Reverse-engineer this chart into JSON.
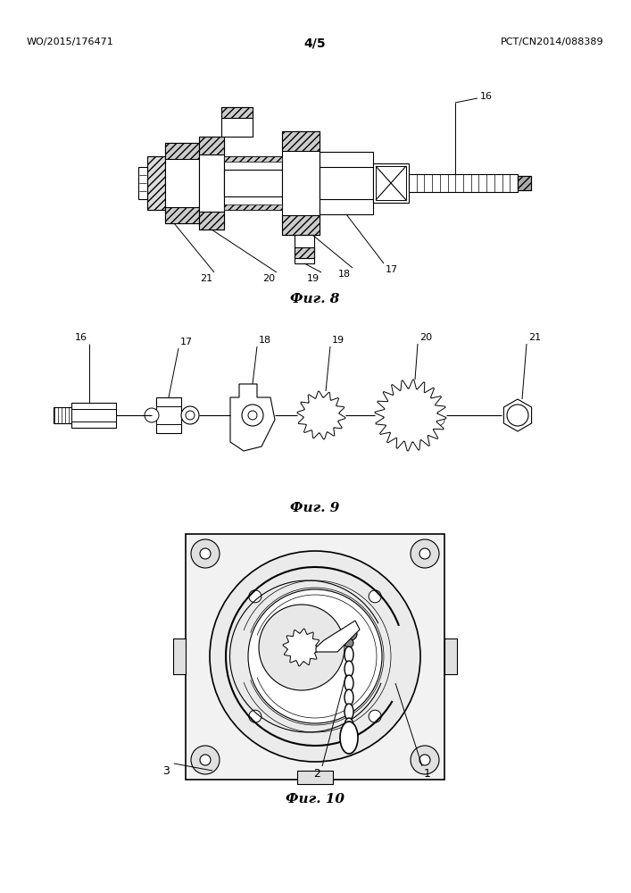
{
  "header_left": "WO/2015/176471",
  "header_right": "PCT/CN2014/088389",
  "page_number": "4/5",
  "fig8_label": "Фиг. 8",
  "fig9_label": "Фиг. 9",
  "fig10_label": "Фиг. 10",
  "bg_color": "#ffffff",
  "line_color": "#000000",
  "label_fontsize": 8,
  "header_fontsize": 8,
  "page_fontsize": 10,
  "caption_fontsize": 11
}
